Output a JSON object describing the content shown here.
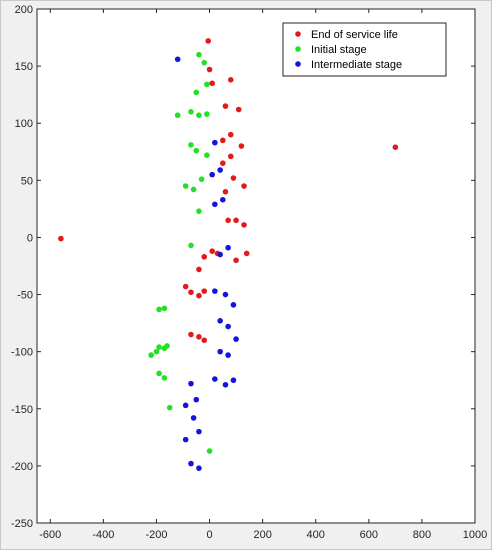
{
  "chart_data": {
    "type": "scatter",
    "title": "",
    "xlabel": "",
    "ylabel": "",
    "xlim": [
      -650,
      1000
    ],
    "ylim": [
      -250,
      200
    ],
    "xticks": [
      -600,
      -400,
      -200,
      0,
      200,
      400,
      600,
      800,
      1000
    ],
    "yticks": [
      -250,
      -200,
      -150,
      -100,
      -50,
      0,
      50,
      100,
      150,
      200
    ],
    "grid": false,
    "legend_position": "top-right",
    "series": [
      {
        "name": "End of service life",
        "color": "#e31a1c",
        "points": [
          [
            -560,
            -1
          ],
          [
            700,
            79
          ],
          [
            -5,
            172
          ],
          [
            0,
            147
          ],
          [
            80,
            138
          ],
          [
            10,
            135
          ],
          [
            60,
            115
          ],
          [
            110,
            112
          ],
          [
            80,
            90
          ],
          [
            50,
            85
          ],
          [
            120,
            80
          ],
          [
            80,
            71
          ],
          [
            50,
            65
          ],
          [
            130,
            45
          ],
          [
            90,
            52
          ],
          [
            60,
            40
          ],
          [
            70,
            15
          ],
          [
            100,
            15
          ],
          [
            130,
            11
          ],
          [
            140,
            -14
          ],
          [
            100,
            -20
          ],
          [
            10,
            -12
          ],
          [
            30,
            -14
          ],
          [
            -20,
            -17
          ],
          [
            -40,
            -28
          ],
          [
            -90,
            -43
          ],
          [
            -70,
            -48
          ],
          [
            -40,
            -51
          ],
          [
            -20,
            -47
          ],
          [
            -70,
            -85
          ],
          [
            -40,
            -87
          ],
          [
            -20,
            -90
          ]
        ]
      },
      {
        "name": "Initial stage",
        "color": "#22e022",
        "points": [
          [
            -40,
            160
          ],
          [
            -20,
            153
          ],
          [
            -10,
            134
          ],
          [
            -50,
            127
          ],
          [
            -70,
            110
          ],
          [
            -120,
            107
          ],
          [
            -40,
            107
          ],
          [
            -10,
            108
          ],
          [
            -70,
            81
          ],
          [
            -50,
            76
          ],
          [
            -10,
            72
          ],
          [
            -30,
            51
          ],
          [
            -90,
            45
          ],
          [
            -60,
            42
          ],
          [
            -40,
            23
          ],
          [
            -70,
            -7
          ],
          [
            -170,
            -62
          ],
          [
            -190,
            -63
          ],
          [
            -160,
            -95
          ],
          [
            -190,
            -96
          ],
          [
            -170,
            -97
          ],
          [
            -200,
            -100
          ],
          [
            -220,
            -103
          ],
          [
            -190,
            -119
          ],
          [
            -170,
            -123
          ],
          [
            -150,
            -149
          ],
          [
            0,
            -187
          ]
        ]
      },
      {
        "name": "Intermediate stage",
        "color": "#1414dc",
        "points": [
          [
            -120,
            156
          ],
          [
            20,
            83
          ],
          [
            10,
            55
          ],
          [
            40,
            59
          ],
          [
            50,
            33
          ],
          [
            20,
            29
          ],
          [
            70,
            -9
          ],
          [
            40,
            -15
          ],
          [
            20,
            -47
          ],
          [
            60,
            -50
          ],
          [
            90,
            -59
          ],
          [
            40,
            -73
          ],
          [
            70,
            -78
          ],
          [
            100,
            -89
          ],
          [
            40,
            -100
          ],
          [
            70,
            -103
          ],
          [
            20,
            -124
          ],
          [
            90,
            -125
          ],
          [
            60,
            -129
          ],
          [
            -70,
            -128
          ],
          [
            -50,
            -142
          ],
          [
            -90,
            -147
          ],
          [
            -60,
            -158
          ],
          [
            -40,
            -170
          ],
          [
            -90,
            -177
          ],
          [
            -70,
            -198
          ],
          [
            -40,
            -202
          ]
        ]
      }
    ]
  }
}
